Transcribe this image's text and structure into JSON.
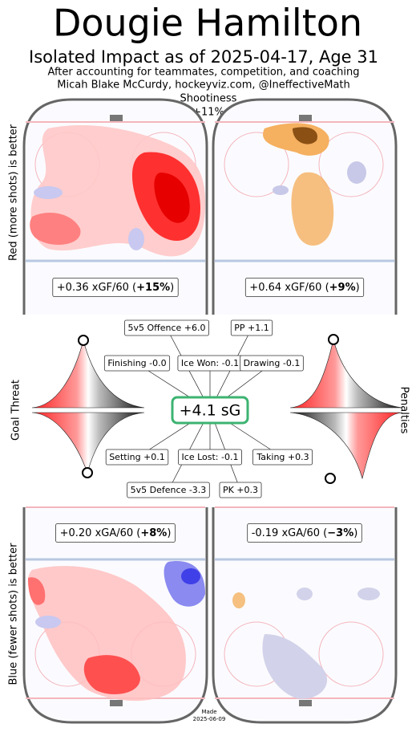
{
  "header": {
    "title": "Dougie Hamilton",
    "subtitle": "Isolated Impact as of 2025-04-17, Age 31",
    "note": "After accounting for teammates, competition, and coaching",
    "credit": "Micah Blake McCurdy, hockeyviz.com, @IneffectiveMath"
  },
  "shootiness": {
    "label": "Shootiness",
    "value": "+11%"
  },
  "side_labels": {
    "offence": "Red (more shots) is better",
    "defence": "Blue (fewer shots) is better",
    "goal_threat": "Goal Threat",
    "penalties": "Penalties"
  },
  "rinks": [
    {
      "prefix": "+0.36 xGF/60 (",
      "bold": "+15%",
      "suffix": ")"
    },
    {
      "prefix": "+0.64 xGF/60 (",
      "bold": "+9%",
      "suffix": ")"
    },
    {
      "prefix": "+0.20 xGA/60 (",
      "bold": "+8%",
      "suffix": ")"
    },
    {
      "prefix": "-0.19 xGA/60 (",
      "bold": "−3%",
      "suffix": ")"
    }
  ],
  "impact": "+4.1 sG",
  "components": [
    "5v5 Offence +6.0",
    "PP +1.1",
    "Finishing -0.0",
    "Ice Won: -0.1",
    "Drawing -0.1",
    "Setting +0.1",
    "Ice Lost: -0.1",
    "Taking +0.3",
    "5v5 Defence -3.3",
    "PK +0.3"
  ],
  "footer": {
    "made": "Made",
    "date": "2025-06-09"
  }
}
